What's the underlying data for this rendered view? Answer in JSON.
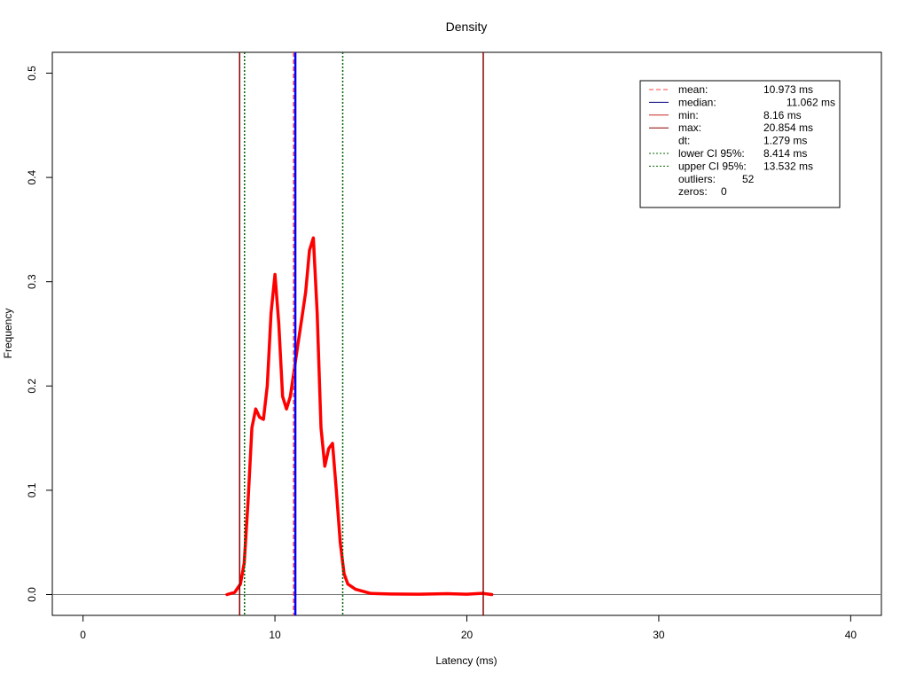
{
  "chart_data": {
    "type": "line",
    "title": "Density",
    "xlabel": "Latency (ms)",
    "ylabel": "Frequency",
    "xlim": [
      -1.6,
      41.6
    ],
    "ylim": [
      -0.02,
      0.52
    ],
    "x_ticks": [
      0,
      10,
      20,
      30,
      40
    ],
    "y_ticks": [
      0.0,
      0.1,
      0.2,
      0.3,
      0.4,
      0.5
    ],
    "y_tick_labels": [
      "0.0",
      "0.1",
      "0.2",
      "0.3",
      "0.4",
      "0.5"
    ],
    "grid": false,
    "legend_position": "top-right",
    "series": [
      {
        "color": "#ff0000",
        "x": [
          7.5,
          7.9,
          8.2,
          8.4,
          8.6,
          8.8,
          9.0,
          9.2,
          9.4,
          9.6,
          9.8,
          10.0,
          10.2,
          10.4,
          10.6,
          10.8,
          11.0,
          11.2,
          11.4,
          11.6,
          11.8,
          12.0,
          12.2,
          12.4,
          12.6,
          12.8,
          13.0,
          13.2,
          13.4,
          13.6,
          13.8,
          14.2,
          15.0,
          16.0,
          17.5,
          19.0,
          20.0,
          20.8,
          21.3
        ],
        "y": [
          0.0,
          0.002,
          0.01,
          0.03,
          0.09,
          0.16,
          0.178,
          0.17,
          0.168,
          0.2,
          0.27,
          0.307,
          0.26,
          0.19,
          0.178,
          0.19,
          0.215,
          0.24,
          0.265,
          0.29,
          0.33,
          0.342,
          0.27,
          0.16,
          0.123,
          0.14,
          0.145,
          0.1,
          0.05,
          0.02,
          0.01,
          0.005,
          0.001,
          0.0005,
          0.0003,
          0.0008,
          0.0003,
          0.0012,
          0.0
        ]
      }
    ],
    "vertical_lines": [
      {
        "label": "mean:",
        "x": 10.973,
        "color": "#ff4444",
        "style": "dashed"
      },
      {
        "label": "median:",
        "x": 11.062,
        "color": "#0000ff",
        "style": "solid"
      },
      {
        "label": "min:",
        "x": 8.16,
        "color": "#8b0000",
        "style": "solid"
      },
      {
        "label": "max:",
        "x": 20.854,
        "color": "#8b0000",
        "style": "solid"
      },
      {
        "label": "lower CI 95%:",
        "x": 8.414,
        "color": "#006400",
        "style": "dotted"
      },
      {
        "label": "upper CI 95%:",
        "x": 13.532,
        "color": "#006400",
        "style": "dotted"
      }
    ],
    "legend": {
      "entries": [
        {
          "label": "mean:",
          "value": "10.973 ms",
          "color": "#ff4444",
          "style": "dashed"
        },
        {
          "label": "median:",
          "value": "11.062 ms",
          "color": "#000080",
          "style": "solid"
        },
        {
          "label": "min:",
          "value": "8.16 ms",
          "color": "#cc2222",
          "style": "solid"
        },
        {
          "label": "max:",
          "value": "20.854 ms",
          "color": "#8b0000",
          "style": "solid"
        },
        {
          "label": "dt:",
          "value": "1.279 ms",
          "color": null,
          "style": "none"
        },
        {
          "label": "lower CI 95%:",
          "value": "8.414 ms",
          "color": "#006400",
          "style": "dotted"
        },
        {
          "label": "upper CI 95%:",
          "value": "13.532 ms",
          "color": "#006400",
          "style": "dotted"
        },
        {
          "label": "outliers:",
          "value": "52",
          "color": null,
          "style": "none"
        },
        {
          "label": "zeros:",
          "value": "0",
          "color": null,
          "style": "none"
        }
      ]
    }
  }
}
